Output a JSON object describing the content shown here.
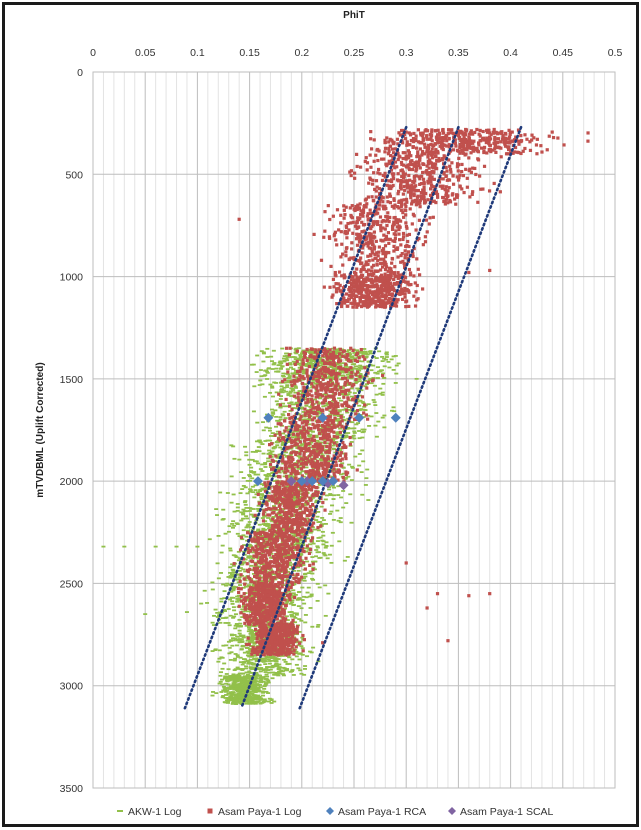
{
  "chart_data": {
    "type": "scatter",
    "x_axis": {
      "label": "PhiT",
      "position": "top",
      "range": [
        0,
        0.5
      ],
      "ticks": [
        "0",
        "0.05",
        "0.1",
        "0.15",
        "0.2",
        "0.25",
        "0.3",
        "0.35",
        "0.4",
        "0.45",
        "0.5"
      ]
    },
    "y_axis": {
      "label": "mTVDBML (Uplift Corrected)",
      "reversed": true,
      "range": [
        0,
        3500
      ],
      "ticks": [
        "0",
        "500",
        "1000",
        "1500",
        "2000",
        "2500",
        "3000",
        "3500"
      ]
    },
    "grid": true,
    "legend_position": "bottom",
    "series": [
      {
        "name": "AKW-1 Log",
        "marker": "dash",
        "color": "#92c04a",
        "clouds": [
          {
            "depth": [
              1350,
              1500
            ],
            "phit": [
              0.16,
              0.29
            ]
          },
          {
            "depth": [
              1500,
              1800
            ],
            "phit": [
              0.15,
              0.28
            ]
          },
          {
            "depth": [
              1800,
              2100
            ],
            "phit": [
              0.13,
              0.26
            ]
          },
          {
            "depth": [
              2100,
              2400
            ],
            "phit": [
              0.12,
              0.24
            ]
          },
          {
            "depth": [
              2400,
              2700
            ],
            "phit": [
              0.11,
              0.22
            ]
          },
          {
            "depth": [
              2700,
              2950
            ],
            "phit": [
              0.12,
              0.21
            ]
          },
          {
            "depth": [
              2950,
              3090
            ],
            "phit": [
              0.12,
              0.17
            ]
          }
        ],
        "outliers": [
          [
            0.01,
            2320
          ],
          [
            0.03,
            2320
          ],
          [
            0.06,
            2320
          ],
          [
            0.08,
            2320
          ],
          [
            0.1,
            2320
          ],
          [
            0.29,
            1520
          ],
          [
            0.31,
            1500
          ],
          [
            0.05,
            2650
          ],
          [
            0.09,
            2640
          ]
        ]
      },
      {
        "name": "Asam Paya-1 Log",
        "marker": "square",
        "color": "#c0504d",
        "clouds": [
          {
            "depth": [
              280,
              400
            ],
            "phit": [
              0.26,
              0.45
            ]
          },
          {
            "depth": [
              400,
              650
            ],
            "phit": [
              0.25,
              0.38
            ]
          },
          {
            "depth": [
              650,
              1000
            ],
            "phit": [
              0.22,
              0.32
            ]
          },
          {
            "depth": [
              1000,
              1150
            ],
            "phit": [
              0.23,
              0.31
            ]
          },
          {
            "depth": [
              1350,
              1700
            ],
            "phit": [
              0.18,
              0.27
            ]
          },
          {
            "depth": [
              1700,
              2000
            ],
            "phit": [
              0.17,
              0.25
            ]
          },
          {
            "depth": [
              2000,
              2250
            ],
            "phit": [
              0.16,
              0.22
            ]
          },
          {
            "depth": [
              2250,
              2500
            ],
            "phit": [
              0.14,
              0.21
            ]
          },
          {
            "depth": [
              2500,
              2700
            ],
            "phit": [
              0.14,
              0.19
            ]
          },
          {
            "depth": [
              2700,
              2850
            ],
            "phit": [
              0.15,
              0.2
            ]
          }
        ],
        "outliers": [
          [
            0.33,
            2550
          ],
          [
            0.36,
            2560
          ],
          [
            0.38,
            2550
          ],
          [
            0.34,
            2780
          ],
          [
            0.22,
            2790
          ],
          [
            0.36,
            980
          ],
          [
            0.38,
            970
          ],
          [
            0.14,
            720
          ],
          [
            0.32,
            2620
          ],
          [
            0.3,
            2400
          ]
        ]
      },
      {
        "name": "Asam Paya-1 RCA",
        "marker": "diamond",
        "color": "#4f81bd",
        "points": [
          [
            0.168,
            1690
          ],
          [
            0.22,
            1690
          ],
          [
            0.255,
            1690
          ],
          [
            0.29,
            1690
          ],
          [
            0.158,
            2000
          ],
          [
            0.2,
            2000
          ],
          [
            0.21,
            2000
          ],
          [
            0.22,
            2000
          ],
          [
            0.23,
            2000
          ]
        ]
      },
      {
        "name": "Asam Paya-1 SCAL",
        "marker": "diamond",
        "color": "#8064a2",
        "points": [
          [
            0.19,
            2000
          ],
          [
            0.205,
            2000
          ],
          [
            0.225,
            2010
          ],
          [
            0.24,
            2020
          ]
        ]
      }
    ],
    "trend_lines": [
      {
        "style": "dotted",
        "color": "#1f3a7a",
        "points": [
          [
            0.3,
            270
          ],
          [
            0.088,
            3110
          ]
        ]
      },
      {
        "style": "dotted",
        "color": "#1f3a7a",
        "points": [
          [
            0.35,
            270
          ],
          [
            0.142,
            3110
          ]
        ]
      },
      {
        "style": "dotted",
        "color": "#1f3a7a",
        "points": [
          [
            0.41,
            270
          ],
          [
            0.198,
            3110
          ]
        ]
      }
    ]
  }
}
